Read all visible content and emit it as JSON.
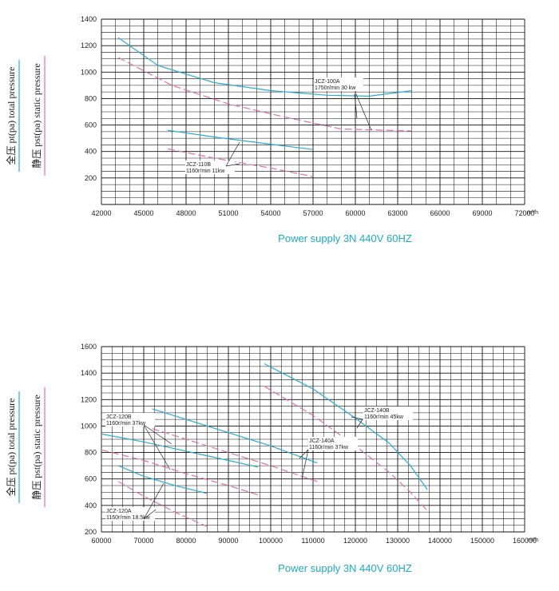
{
  "chart_data": [
    {
      "type": "line",
      "xlabel": "Power supply  3N 440V  60HZ",
      "x_unit": "m³/h",
      "ylabel_total": "全压 pt(pa) total pressure",
      "ylabel_static": "静压 pst(pa) static pressure",
      "xlim": [
        42000,
        72000
      ],
      "ylim": [
        0,
        1400
      ],
      "x_ticks": [
        42000,
        45000,
        48000,
        51000,
        54000,
        57000,
        60000,
        63000,
        66000,
        69000,
        72000
      ],
      "y_ticks": [
        200,
        400,
        600,
        800,
        1000,
        1200,
        1400
      ],
      "grid": true,
      "colors": {
        "total": "#29acd1",
        "static": "#e0748f"
      },
      "series": [
        {
          "kind": "total",
          "points": [
            [
              43200,
              1260
            ],
            [
              46000,
              1050
            ],
            [
              50000,
              920
            ],
            [
              54000,
              860
            ],
            [
              58000,
              825
            ],
            [
              61000,
              818
            ],
            [
              64000,
              860
            ]
          ]
        },
        {
          "kind": "static",
          "points": [
            [
              43200,
              1110
            ],
            [
              47000,
              900
            ],
            [
              51000,
              760
            ],
            [
              55000,
              660
            ],
            [
              59000,
              570
            ],
            [
              64000,
              555
            ]
          ]
        },
        {
          "kind": "total",
          "points": [
            [
              46700,
              560
            ],
            [
              50000,
              510
            ],
            [
              54000,
              455
            ],
            [
              57000,
              415
            ]
          ]
        },
        {
          "kind": "static",
          "points": [
            [
              46700,
              420
            ],
            [
              50000,
              350
            ],
            [
              54000,
              275
            ],
            [
              57000,
              210
            ]
          ]
        }
      ],
      "annotations": [
        {
          "label": "JCZ-100A",
          "line2": "1750r/min 30 kw"
        },
        {
          "label": "JCZ-110B",
          "line2": "1160r/min 11kw"
        }
      ]
    },
    {
      "type": "line",
      "xlabel": "Power supply  3N 440V  60HZ",
      "x_unit": "m³/h",
      "ylabel_total": "全压 pt(pa) total pressure",
      "ylabel_static": "静压 pst(pa) static pressure",
      "xlim": [
        60000,
        160000
      ],
      "ylim": [
        200,
        1600
      ],
      "x_ticks": [
        60000,
        70000,
        80000,
        90000,
        100000,
        110000,
        120000,
        130000,
        140000,
        150000,
        160000
      ],
      "y_ticks": [
        200,
        400,
        600,
        800,
        1000,
        1200,
        1400,
        1600
      ],
      "grid": true,
      "colors": {
        "total": "#29acd1",
        "static": "#e0748f"
      },
      "series": [
        {
          "kind": "total",
          "points": [
            [
              98500,
              1470
            ],
            [
              110000,
              1280
            ],
            [
              120000,
              1060
            ],
            [
              128000,
              870
            ],
            [
              133000,
              700
            ],
            [
              137000,
              520
            ]
          ]
        },
        {
          "kind": "static",
          "points": [
            [
              98500,
              1300
            ],
            [
              110000,
              1080
            ],
            [
              120000,
              850
            ],
            [
              128000,
              650
            ],
            [
              133000,
              500
            ],
            [
              137000,
              360
            ]
          ]
        },
        {
          "kind": "total",
          "points": [
            [
              72000,
              1130
            ],
            [
              85000,
              1000
            ],
            [
              100000,
              850
            ],
            [
              111000,
              720
            ]
          ]
        },
        {
          "kind": "static",
          "points": [
            [
              72000,
              980
            ],
            [
              85000,
              850
            ],
            [
              100000,
              700
            ],
            [
              111000,
              580
            ]
          ]
        },
        {
          "kind": "total",
          "points": [
            [
              60000,
              940
            ],
            [
              70000,
              880
            ],
            [
              80000,
              810
            ],
            [
              90000,
              740
            ],
            [
              97000,
              690
            ]
          ]
        },
        {
          "kind": "static",
          "points": [
            [
              60000,
              820
            ],
            [
              70000,
              740
            ],
            [
              80000,
              640
            ],
            [
              90000,
              550
            ],
            [
              97000,
              480
            ]
          ]
        },
        {
          "kind": "total",
          "points": [
            [
              64000,
              700
            ],
            [
              70000,
              620
            ],
            [
              78000,
              545
            ],
            [
              85000,
              490
            ]
          ]
        },
        {
          "kind": "static",
          "points": [
            [
              64000,
              580
            ],
            [
              70000,
              470
            ],
            [
              78000,
              340
            ],
            [
              85000,
              240
            ]
          ]
        }
      ],
      "annotations": [
        {
          "label": "JCZ-120B",
          "line2": "1160r/min 37kw"
        },
        {
          "label": "JCZ-140A",
          "line2": "1160r/min 37kw"
        },
        {
          "label": "JCZ-140B",
          "line2": "1160r/min 45kw"
        },
        {
          "label": "JCZ-120A",
          "line2": "1160r/min 18.5kw"
        }
      ]
    }
  ]
}
